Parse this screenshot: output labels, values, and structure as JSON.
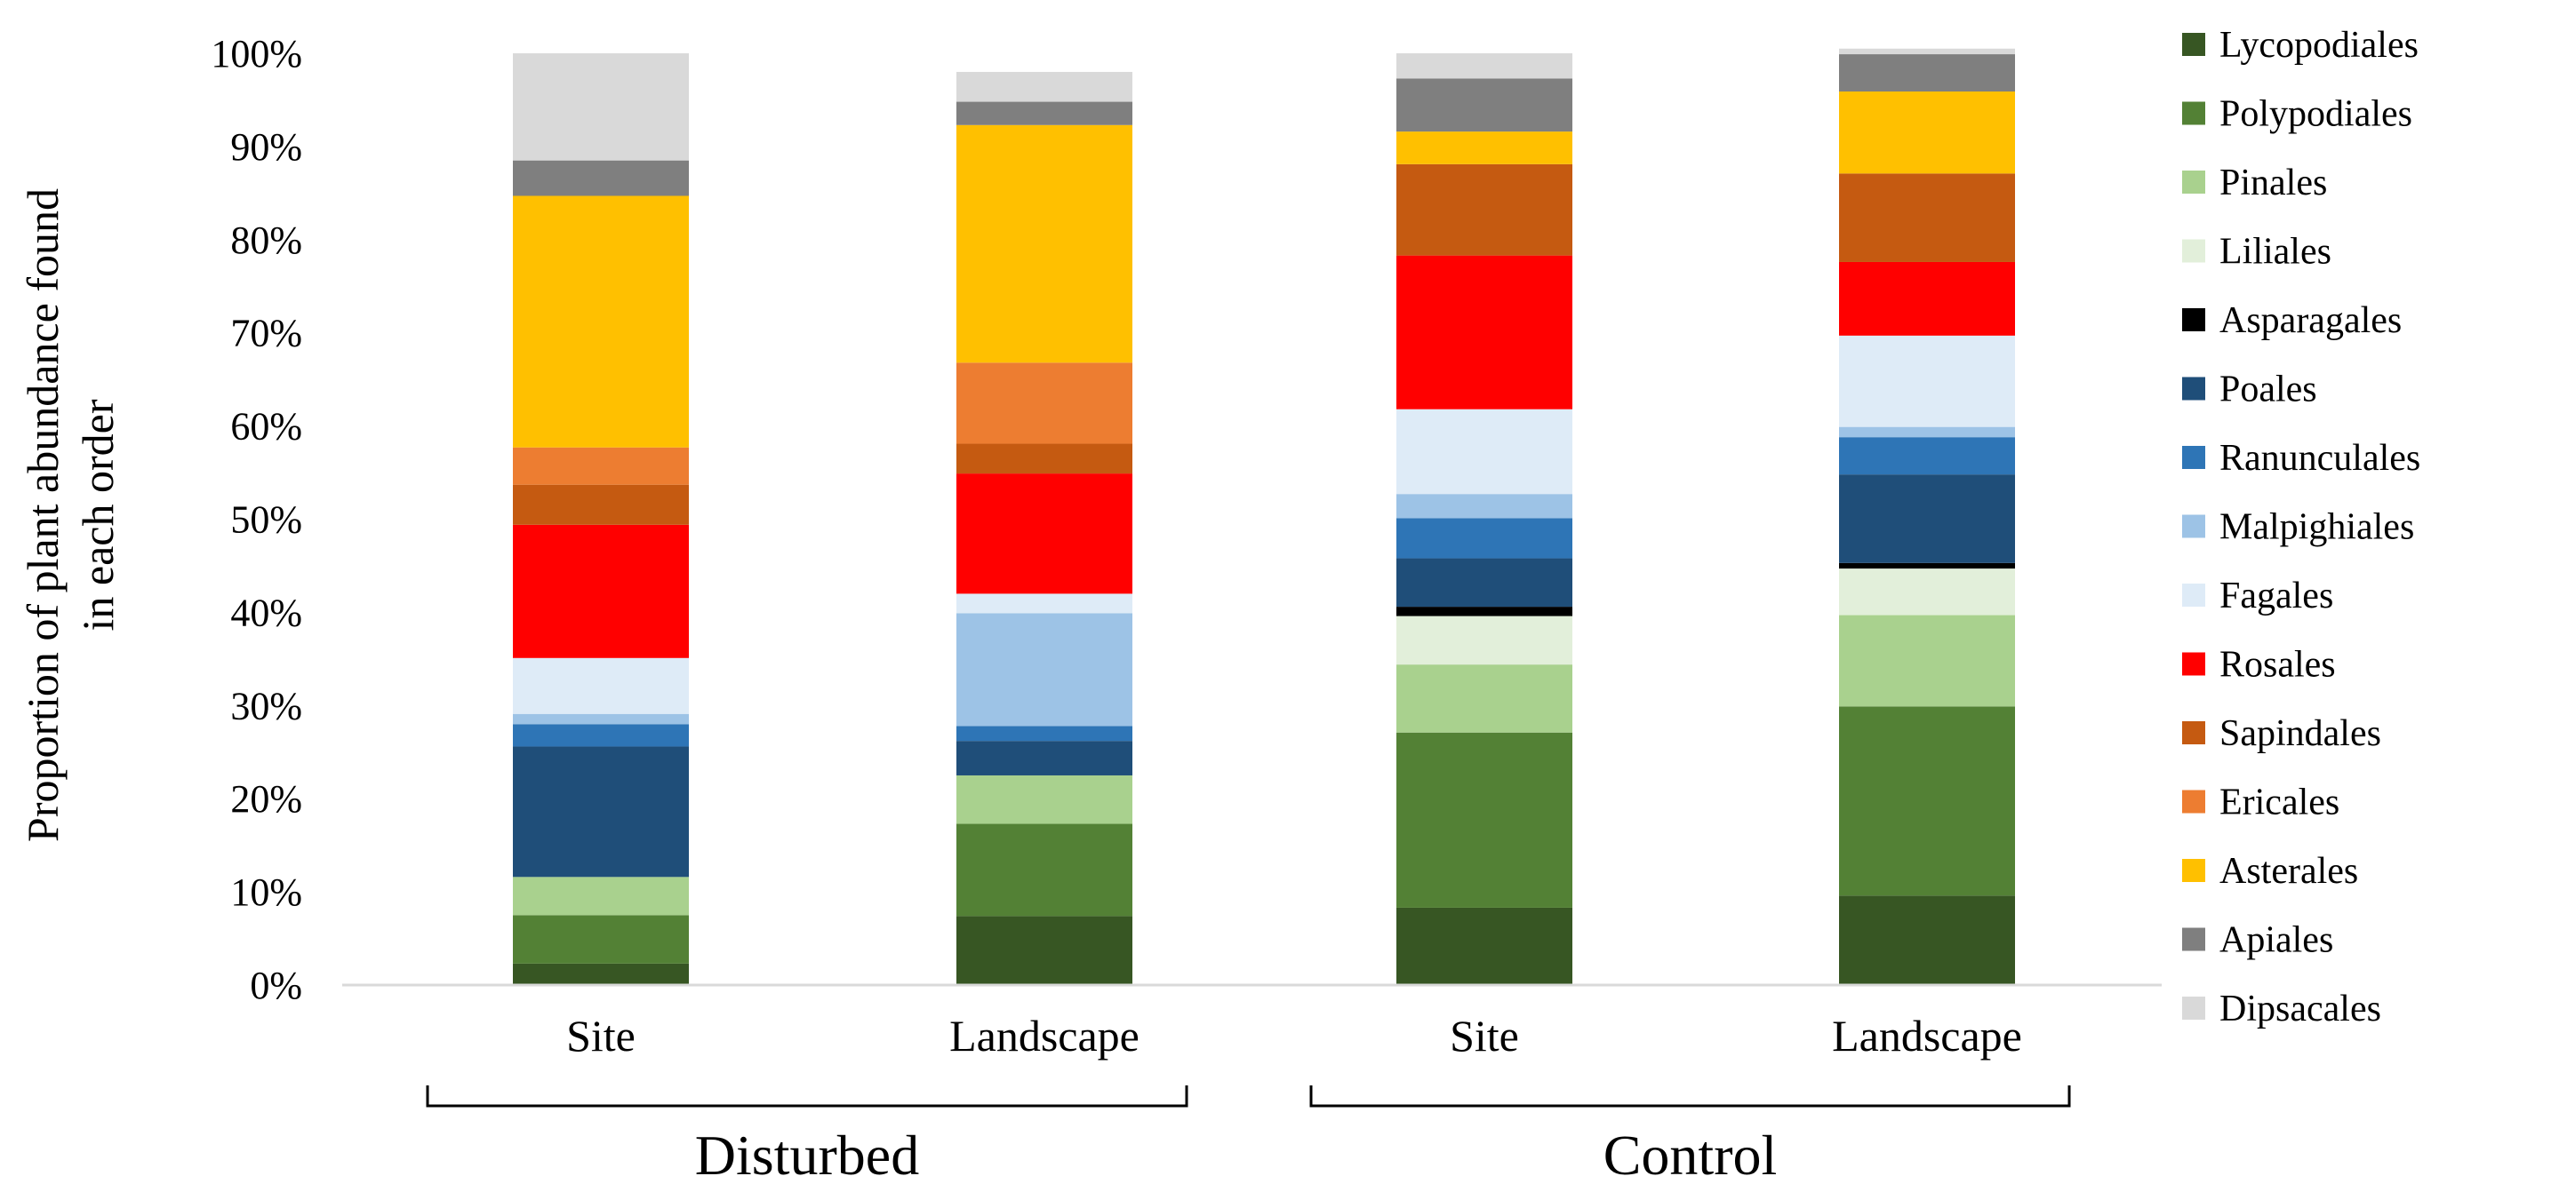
{
  "chart_data": {
    "type": "stacked-bar",
    "title": "",
    "ylabel_lines": [
      "Proportion of plant abundance found",
      "in each order"
    ],
    "xlabel": "",
    "ylim": [
      0,
      100
    ],
    "yticks": [
      0,
      10,
      20,
      30,
      40,
      50,
      60,
      70,
      80,
      90,
      100
    ],
    "ytick_labels": [
      "0%",
      "10%",
      "20%",
      "30%",
      "40%",
      "50%",
      "60%",
      "70%",
      "80%",
      "90%",
      "100%"
    ],
    "grid": false,
    "legend_position": "right",
    "categories": [
      "Site",
      "Landscape",
      "Site",
      "Landscape"
    ],
    "groups": [
      {
        "label": "Disturbed",
        "categories": [
          0,
          1
        ]
      },
      {
        "label": "Control",
        "categories": [
          2,
          3
        ]
      }
    ],
    "series": [
      {
        "name": "Lycopodiales",
        "color": "#375623",
        "values": [
          2.3,
          7.4,
          8.3,
          9.6
        ]
      },
      {
        "name": "Polypodiales",
        "color": "#538135",
        "values": [
          5.2,
          9.9,
          18.8,
          20.3
        ]
      },
      {
        "name": "Pinales",
        "color": "#A9D18E",
        "values": [
          4.1,
          5.2,
          7.3,
          9.8
        ]
      },
      {
        "name": "Liliales",
        "color": "#E2EFDA",
        "values": [
          0,
          0,
          5.2,
          5.0
        ]
      },
      {
        "name": "Asparagales",
        "color": "#000000",
        "values": [
          0,
          0,
          1.0,
          0.6
        ]
      },
      {
        "name": "Poales",
        "color": "#1F4E79",
        "values": [
          14.0,
          3.7,
          5.2,
          9.5
        ]
      },
      {
        "name": "Ranunculales",
        "color": "#2E75B6",
        "values": [
          2.4,
          1.6,
          4.3,
          4.0
        ]
      },
      {
        "name": "Malpighiales",
        "color": "#9DC3E6",
        "values": [
          1.1,
          12.1,
          2.6,
          1.1
        ]
      },
      {
        "name": "Fagales",
        "color": "#DEEBF7",
        "values": [
          6.0,
          2.1,
          9.1,
          9.8
        ]
      },
      {
        "name": "Rosales",
        "color": "#FF0000",
        "values": [
          14.3,
          12.9,
          16.5,
          7.9
        ]
      },
      {
        "name": "Sapindales",
        "color": "#C55A11",
        "values": [
          4.3,
          3.2,
          9.8,
          9.5
        ]
      },
      {
        "name": "Ericales",
        "color": "#ED7D31",
        "values": [
          4.0,
          8.7,
          0,
          0
        ]
      },
      {
        "name": "Asterales",
        "color": "#FFC000",
        "values": [
          27.0,
          25.5,
          3.5,
          8.8
        ]
      },
      {
        "name": "Apiales",
        "color": "#7F7F7F",
        "values": [
          3.8,
          2.5,
          5.7,
          4.0
        ]
      },
      {
        "name": "Dipsacales",
        "color": "#D9D9D9",
        "values": [
          11.5,
          3.2,
          2.7,
          0.6
        ]
      }
    ]
  }
}
